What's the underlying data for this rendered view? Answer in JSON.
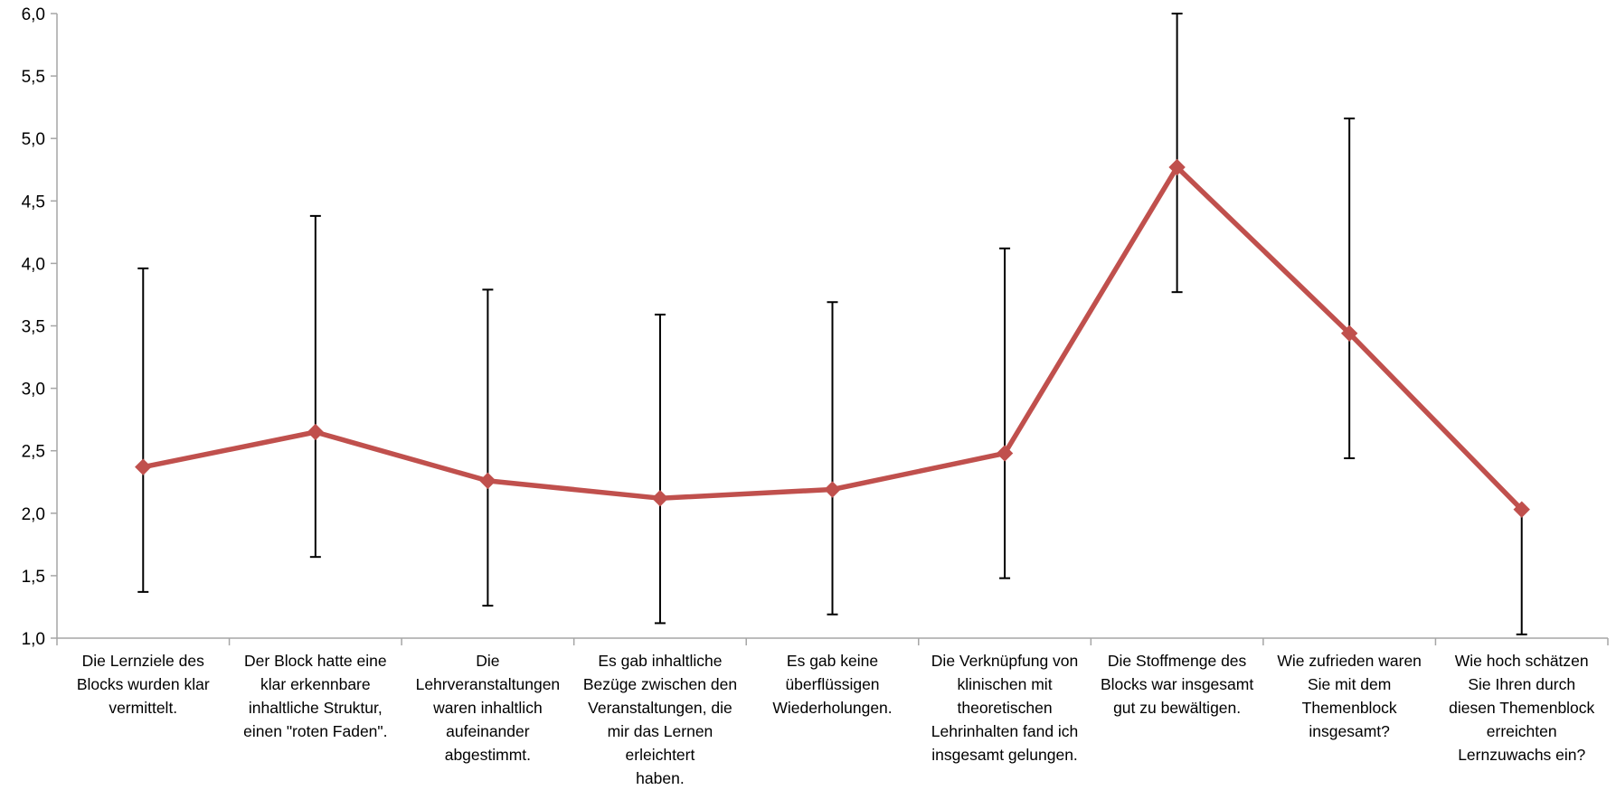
{
  "chart_data": {
    "type": "line",
    "title": "",
    "xlabel": "",
    "ylabel": "",
    "ylim": [
      1.0,
      6.0
    ],
    "yticks": [
      "1,0",
      "1,5",
      "2,0",
      "2,5",
      "3,0",
      "3,5",
      "4,0",
      "4,5",
      "5,0",
      "5,5",
      "6,0"
    ],
    "categories": [
      "Die Lernziele des\nBlocks wurden klar\nvermittelt.",
      "Der Block hatte eine\nklar erkennbare\ninhaltliche Struktur,\neinen \"roten Faden\".",
      "Die\nLehrveranstaltungen\nwaren inhaltlich\naufeinander\nabgestimmt.",
      "Es gab inhaltliche\nBezüge zwischen den\nVeranstaltungen, die\nmir das Lernen\nerleichtert\nhaben.",
      "Es gab keine\nüberflüssigen\nWiederholungen.",
      "Die Verknüpfung von\nklinischen mit\ntheoretischen\nLehrinhalten fand ich\ninsgesamt gelungen.",
      "Die Stoffmenge des\nBlocks war insgesamt\ngut zu bewältigen.",
      "Wie zufrieden waren\nSie mit dem\nThemenblock\ninsgesamt?",
      "Wie hoch schätzen\nSie Ihren durch\ndiesen Themenblock\nerreichten\nLernzuwachs ein?"
    ],
    "series": [
      {
        "values": [
          2.37,
          2.65,
          2.26,
          2.12,
          2.19,
          2.48,
          4.77,
          3.44,
          2.03
        ],
        "error_low": [
          1.37,
          1.65,
          1.26,
          1.12,
          1.19,
          1.48,
          3.77,
          2.44,
          1.03
        ],
        "error_high": [
          3.96,
          4.38,
          3.79,
          3.59,
          3.69,
          4.12,
          6.0,
          5.16,
          2.03
        ],
        "color": "#c0504d",
        "marker": "diamond"
      }
    ],
    "grid": false,
    "legend": "none",
    "axis_color": "#a6a6a6",
    "errorbar_color": "#000000"
  }
}
